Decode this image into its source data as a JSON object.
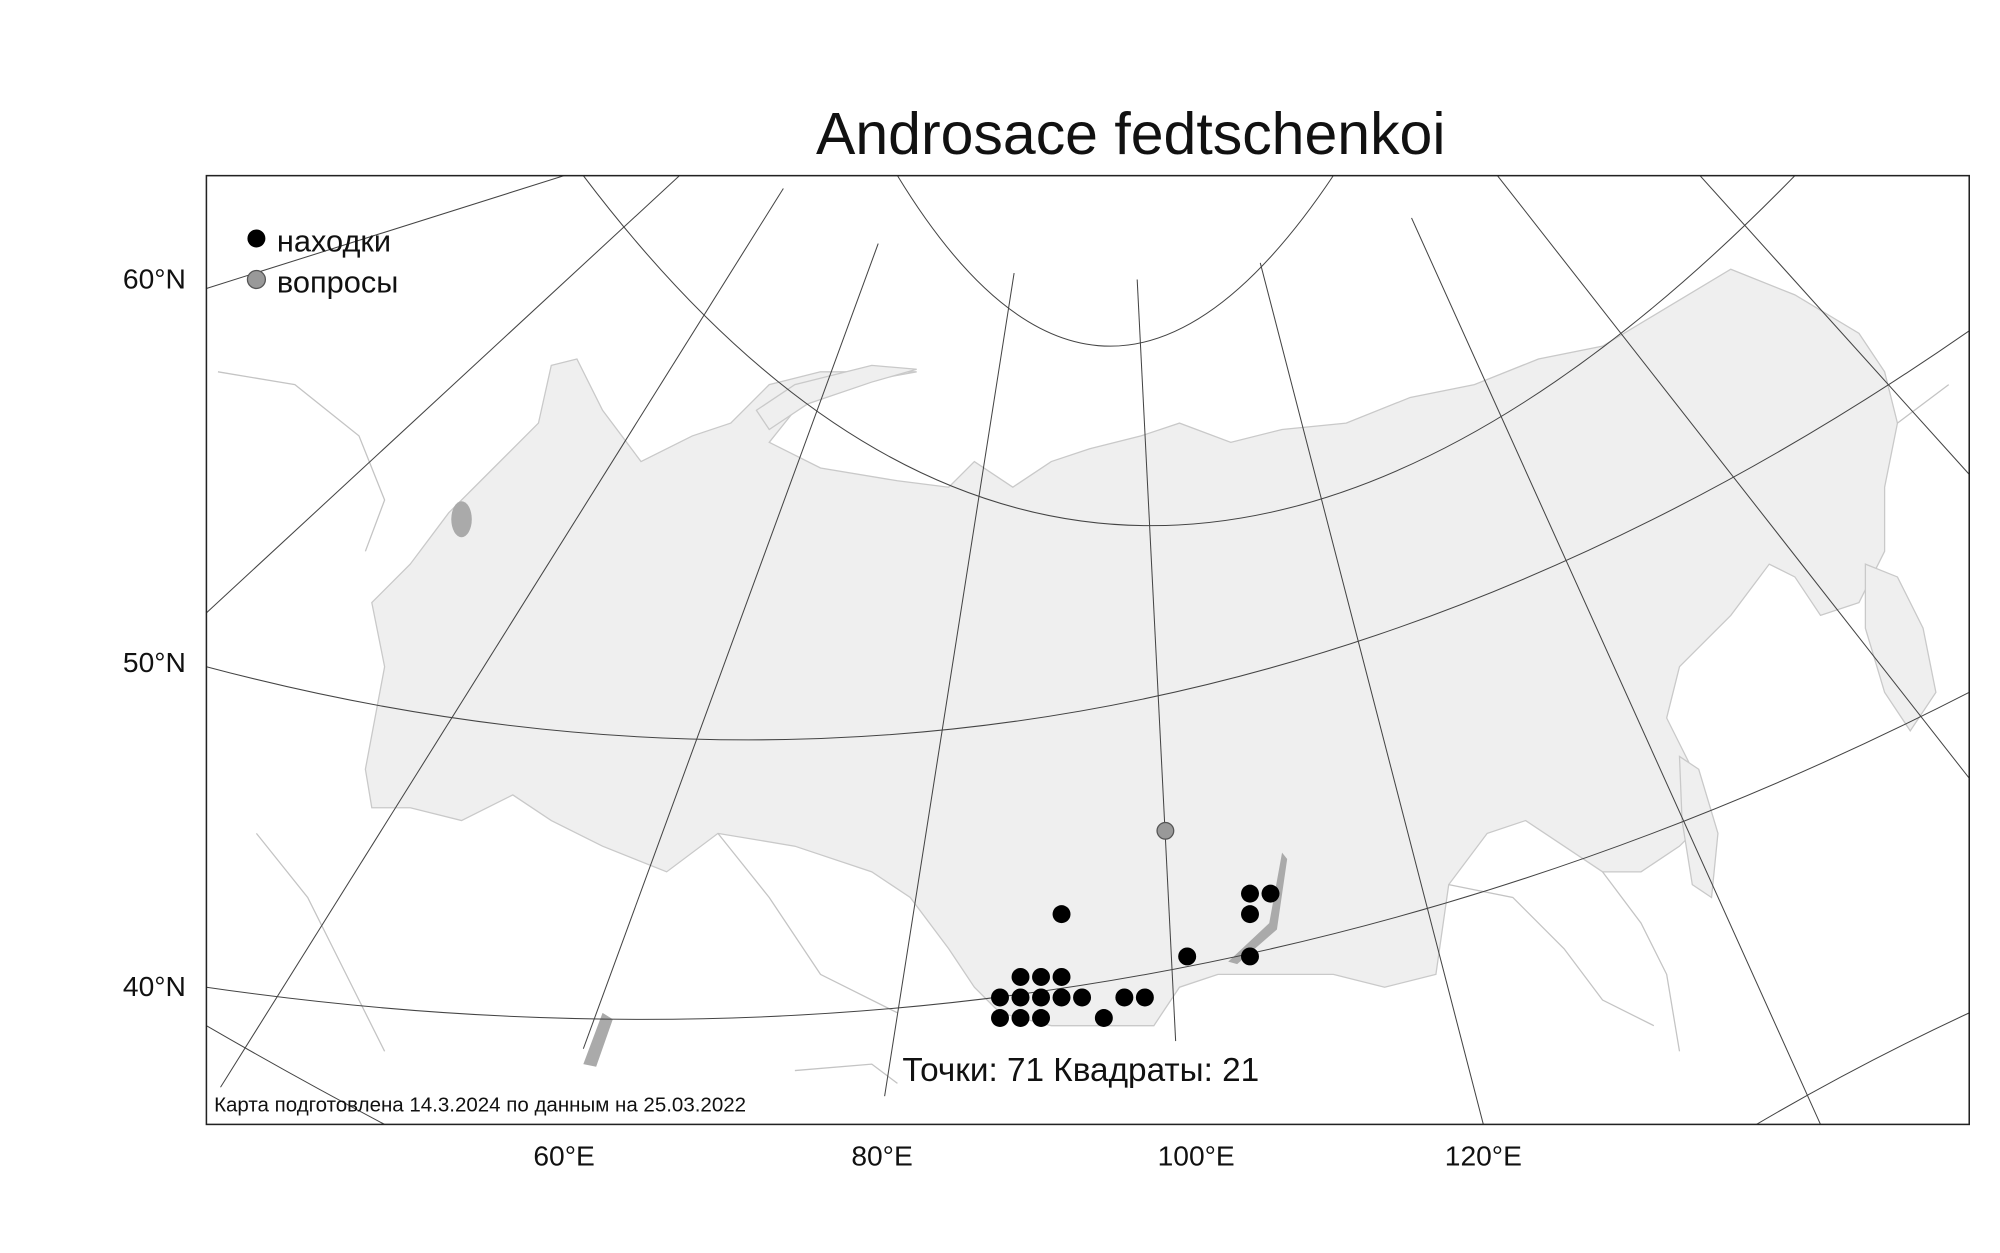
{
  "title": "Androsace fedtschenkoi",
  "legend": [
    {
      "label": "находки"
    },
    {
      "label": "вопросы"
    }
  ],
  "axes": {
    "lat_labels": [
      "60°N",
      "50°N",
      "40°N"
    ],
    "lon_labels": [
      "60°E",
      "80°E",
      "100°E",
      "120°E"
    ]
  },
  "summary": "Точки: 71 Квадраты: 21",
  "note": "Карта подготовлена 14.3.2024 по данным на 25.03.2022"
}
